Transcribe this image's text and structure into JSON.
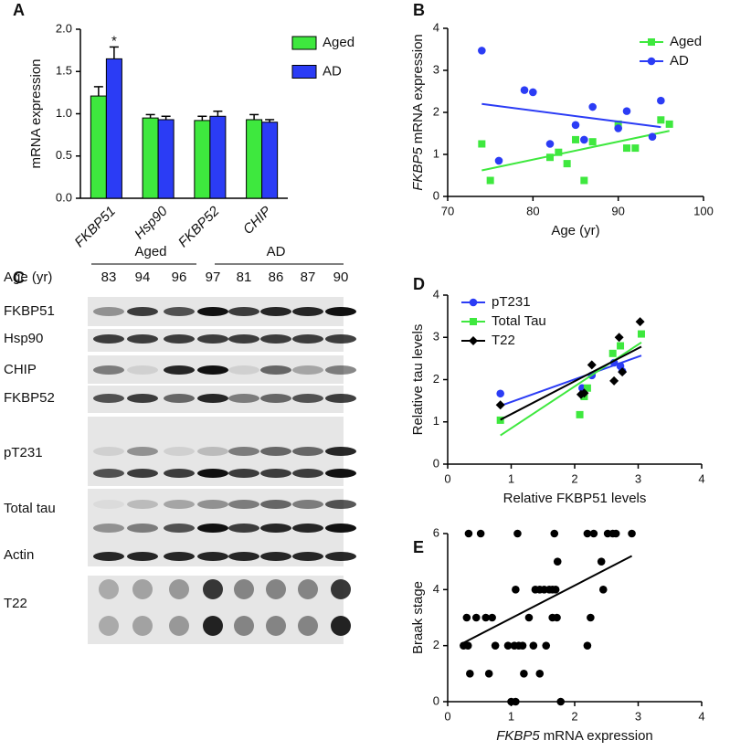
{
  "chart_data": [
    {
      "type": "bar",
      "panel_label": "A",
      "ylabel": "mRNA expression",
      "categories": [
        "FKBP51",
        "Hsp90",
        "FKBP52",
        "CHIP"
      ],
      "category_style": "italic",
      "series": [
        {
          "name": "Aged",
          "color": "#3ee83e",
          "values": [
            1.21,
            0.95,
            0.92,
            0.93
          ],
          "errors": [
            0.11,
            0.04,
            0.05,
            0.06
          ]
        },
        {
          "name": "AD",
          "color": "#2b3cf5",
          "values": [
            1.65,
            0.93,
            0.97,
            0.9
          ],
          "errors": [
            0.14,
            0.04,
            0.06,
            0.03
          ]
        }
      ],
      "annotation": "*",
      "ylim": [
        0,
        2
      ],
      "yticks": [
        {
          "value": 0,
          "label": "0.0"
        },
        {
          "value": 0.5,
          "label": "0.5"
        },
        {
          "value": 1,
          "label": "1.0"
        },
        {
          "value": 1.5,
          "label": "1.5"
        },
        {
          "value": 2,
          "label": "2.0"
        }
      ],
      "legend": "upper right"
    },
    {
      "type": "scatter",
      "panel_label": "B",
      "xlabel": "Age (yr)",
      "ylabel": [
        "FKBP5",
        "mRNA expression"
      ],
      "xlim": [
        70,
        100
      ],
      "xticks": [
        70,
        80,
        90,
        100
      ],
      "ylim": [
        0,
        4
      ],
      "yticks": [
        0,
        1,
        2,
        3,
        4
      ],
      "legend": "upper right",
      "series": [
        {
          "name": "Aged",
          "color": "#3ee83e",
          "marker": "square",
          "x": [
            74,
            75,
            82,
            83,
            84,
            85,
            86,
            87,
            90,
            91,
            92,
            95,
            96
          ],
          "values": [
            1.25,
            0.38,
            0.93,
            1.05,
            0.78,
            1.35,
            0.38,
            1.3,
            1.72,
            1.15,
            1.15,
            1.82,
            1.72
          ],
          "fit": {
            "x": [
              74,
              96
            ],
            "values": [
              0.62,
              1.56
            ]
          }
        },
        {
          "name": "AD",
          "color": "#2b3cf5",
          "marker": "circle",
          "x": [
            74,
            76,
            79,
            80,
            82,
            85,
            86,
            87,
            90,
            91,
            94,
            95
          ],
          "values": [
            3.47,
            0.85,
            2.53,
            2.48,
            1.25,
            1.7,
            1.35,
            2.13,
            1.62,
            2.03,
            1.42,
            2.28
          ],
          "fit": {
            "x": [
              74,
              95
            ],
            "values": [
              2.2,
              1.65
            ]
          }
        }
      ]
    },
    {
      "type": "scatter",
      "panel_label": "D",
      "xlabel": "Relative FKBP51 levels",
      "ylabel": "Relative tau levels",
      "xlim": [
        0,
        4
      ],
      "xticks": [
        0,
        1,
        2,
        3,
        4
      ],
      "ylim": [
        0,
        4
      ],
      "yticks": [
        0,
        1,
        2,
        3,
        4
      ],
      "legend": "upper left",
      "series": [
        {
          "name": "pT231",
          "color": "#2b3cf5",
          "marker": "circle",
          "x": [
            0.83,
            2.12,
            2.27,
            2.62,
            2.72,
            2.75
          ],
          "values": [
            1.67,
            1.8,
            2.1,
            2.4,
            2.32,
            2.2
          ],
          "fit": {
            "x": [
              0.83,
              3.05
            ],
            "values": [
              1.38,
              2.57
            ]
          }
        },
        {
          "name": "Total Tau",
          "color": "#3ee83e",
          "marker": "square",
          "x": [
            0.83,
            2.08,
            2.15,
            2.6,
            2.72,
            3.05,
            2.2
          ],
          "values": [
            1.04,
            1.17,
            1.6,
            2.62,
            2.8,
            3.08,
            1.8
          ],
          "fit": {
            "x": [
              0.83,
              3.05
            ],
            "values": [
              0.68,
              2.88
            ]
          }
        },
        {
          "name": "T22",
          "color": "#000000",
          "marker": "diamond",
          "x": [
            0.83,
            2.1,
            2.15,
            2.27,
            2.62,
            2.7,
            2.75,
            3.03
          ],
          "values": [
            1.4,
            1.65,
            1.68,
            2.35,
            1.97,
            3.0,
            2.18,
            3.37
          ],
          "fit": {
            "x": [
              0.83,
              3.05
            ],
            "values": [
              1.05,
              2.78
            ]
          }
        }
      ]
    },
    {
      "type": "scatter",
      "panel_label": "E",
      "xlabel": [
        "FKBP5",
        "mRNA expression"
      ],
      "ylabel": "Braak stage",
      "xlim": [
        0,
        4
      ],
      "xticks": [
        0,
        1,
        2,
        3,
        4
      ],
      "ylim": [
        0,
        6
      ],
      "yticks": [
        0,
        2,
        4,
        6
      ],
      "series": [
        {
          "color": "#000000",
          "marker": "circle",
          "x": [
            0.33,
            0.52,
            1.1,
            1.68,
            2.2,
            2.3,
            2.52,
            2.6,
            2.65,
            2.9,
            1.73,
            2.42,
            1.07,
            1.38,
            1.45,
            1.52,
            1.6,
            1.65,
            1.7,
            2.45,
            0.3,
            0.45,
            0.6,
            0.7,
            1.28,
            1.65,
            1.72,
            2.25,
            0.25,
            0.32,
            0.75,
            0.95,
            1.05,
            1.12,
            1.18,
            1.35,
            1.55,
            2.2,
            0.35,
            0.65,
            1.2,
            1.45,
            1.0,
            1.07,
            1.78
          ],
          "values": [
            6,
            6,
            6,
            6,
            6,
            6,
            6,
            6,
            6,
            6,
            5,
            5,
            4,
            4,
            4,
            4,
            4,
            4,
            4,
            4,
            3,
            3,
            3,
            3,
            3,
            3,
            3,
            3,
            2,
            2,
            2,
            2,
            2,
            2,
            2,
            2,
            2,
            2,
            1,
            1,
            1,
            1,
            0,
            0,
            0
          ],
          "fit": {
            "x": [
              0.25,
              2.9
            ],
            "values": [
              2.1,
              5.2
            ]
          }
        }
      ]
    }
  ],
  "blot": {
    "panel_label": "C",
    "groups": [
      "Aged",
      "AD"
    ],
    "age_label": "Age (yr)",
    "ages": [
      83,
      94,
      96,
      97,
      81,
      86,
      87,
      90
    ],
    "rows": [
      "FKBP51",
      "Hsp90",
      "CHIP",
      "FKBP52",
      "pT231",
      "Total tau",
      "Actin",
      "T22"
    ]
  }
}
